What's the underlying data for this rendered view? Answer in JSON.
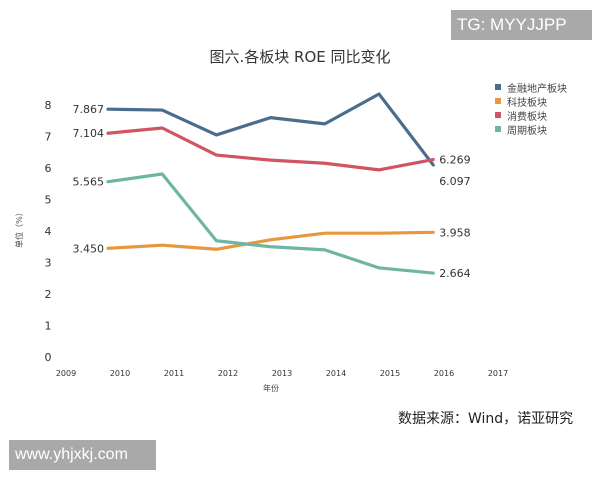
{
  "watermarks": {
    "top": "TG: MYYJJPP",
    "bottom": "www.yhjxkj.com"
  },
  "source_note": "数据来源：Wind，诺亚研究",
  "chart_data": {
    "type": "line",
    "title": "图六.各板块 ROE 同比变化",
    "xlabel": "年份",
    "ylabel": "单位（%）",
    "x_ticks": [
      "2009",
      "2010",
      "2011",
      "2012",
      "2013",
      "2014",
      "2015",
      "2016",
      "2017"
    ],
    "y_ticks": [
      "0",
      "1",
      "2",
      "3",
      "4",
      "5",
      "6",
      "7",
      "8"
    ],
    "ylim": [
      0,
      8
    ],
    "grid": false,
    "legend_position": "right",
    "categories": [
      "2010",
      "2011",
      "2012",
      "2013",
      "2014",
      "2015",
      "2016"
    ],
    "series": [
      {
        "name": "金融地产板块",
        "color": "#4a6d8c",
        "values": [
          7.867,
          7.84,
          7.05,
          7.6,
          7.4,
          8.35,
          6.097
        ],
        "start_label": "7.867",
        "end_label": "6.097"
      },
      {
        "name": "科技板块",
        "color": "#e8973e",
        "values": [
          3.45,
          3.55,
          3.42,
          3.72,
          3.93,
          3.93,
          3.958
        ],
        "start_label": "3.450",
        "end_label": "3.958"
      },
      {
        "name": "消费板块",
        "color": "#d05462",
        "values": [
          7.104,
          7.27,
          6.41,
          6.25,
          6.15,
          5.94,
          6.269
        ],
        "start_label": "7.104",
        "end_label": "6.269"
      },
      {
        "name": "周期板块",
        "color": "#6fb5a3",
        "values": [
          5.565,
          5.81,
          3.69,
          3.5,
          3.4,
          2.83,
          2.664
        ],
        "start_label": "5.565",
        "end_label": "2.664"
      }
    ]
  }
}
